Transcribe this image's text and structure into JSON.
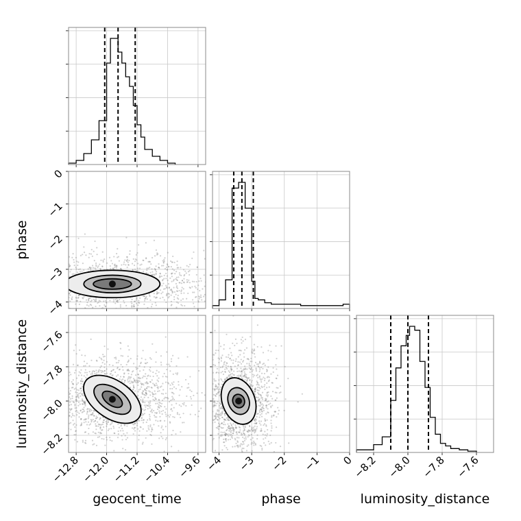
{
  "chart_data": {
    "type": "corner",
    "parameters": [
      "geocent_time",
      "phase",
      "luminosity_distance"
    ],
    "axis_labels": [
      "geocent_time",
      "phase",
      "luminosity_distance"
    ],
    "ranges": [
      [
        -13.0,
        -9.4
      ],
      [
        -4.2,
        0.0
      ],
      [
        -8.3,
        -7.5
      ]
    ],
    "ticks": [
      {
        "values": [
          -12.8,
          -12.0,
          -11.2,
          -10.4,
          -9.6
        ],
        "labels": [
          "−12.8",
          "−12.0",
          "−11.2",
          "−10.4",
          "−9.6"
        ]
      },
      {
        "values": [
          -4,
          -3,
          -2,
          -1,
          0
        ],
        "labels": [
          "−4",
          "−3",
          "−2",
          "−1",
          "0"
        ]
      },
      {
        "values": [
          -8.2,
          -8.0,
          -7.8,
          -7.6
        ],
        "labels": [
          "−8.2",
          "−8.0",
          "−7.8",
          "−7.6"
        ]
      }
    ],
    "grid": true,
    "histograms": [
      {
        "parameter": "geocent_time",
        "bin_edges": [
          -13.0,
          -12.8,
          -12.6,
          -12.4,
          -12.2,
          -12.0,
          -11.9,
          -11.8,
          -11.7,
          -11.6,
          -11.5,
          -11.4,
          -11.3,
          -11.2,
          -11.1,
          -11.0,
          -10.8,
          -10.6,
          -10.4,
          -10.2
        ],
        "counts": [
          0.01,
          0.03,
          0.08,
          0.18,
          0.32,
          0.74,
          0.92,
          0.92,
          0.82,
          0.74,
          0.64,
          0.57,
          0.43,
          0.29,
          0.2,
          0.11,
          0.06,
          0.03,
          0.01
        ],
        "quantiles": [
          -12.05,
          -11.7,
          -11.25
        ]
      },
      {
        "parameter": "phase",
        "bin_edges": [
          -4.2,
          -4.0,
          -3.8,
          -3.6,
          -3.5,
          -3.4,
          -3.3,
          -3.2,
          -3.1,
          -3.0,
          -2.9,
          -2.8,
          -2.6,
          -2.4,
          -2.0,
          -1.5,
          -1.0,
          -0.5,
          -0.2,
          0.0
        ],
        "counts": [
          0.02,
          0.06,
          0.2,
          0.84,
          0.84,
          0.88,
          0.88,
          0.7,
          0.7,
          0.19,
          0.07,
          0.06,
          0.04,
          0.03,
          0.03,
          0.02,
          0.02,
          0.02,
          0.03
        ],
        "quantiles": [
          -3.55,
          -3.3,
          -2.95
        ]
      },
      {
        "parameter": "luminosity_distance",
        "bin_edges": [
          -8.3,
          -8.2,
          -8.15,
          -8.1,
          -8.07,
          -8.04,
          -8.01,
          -7.99,
          -7.96,
          -7.93,
          -7.9,
          -7.87,
          -7.84,
          -7.81,
          -7.78,
          -7.75,
          -7.7,
          -7.65,
          -7.6
        ],
        "counts": [
          0.02,
          0.06,
          0.12,
          0.4,
          0.65,
          0.82,
          0.9,
          0.97,
          0.94,
          0.7,
          0.5,
          0.27,
          0.14,
          0.07,
          0.05,
          0.03,
          0.02,
          0.01
        ],
        "quantiles": [
          -8.1,
          -8.0,
          -7.88
        ]
      }
    ],
    "contours_2d": [
      {
        "x": "geocent_time",
        "y": "phase",
        "center": [
          -11.85,
          -3.45
        ],
        "levels": [
          [
            0.5,
            0.16
          ],
          [
            0.75,
            0.27
          ],
          [
            1.25,
            0.42
          ]
        ],
        "tilt": 0.0
      },
      {
        "x": "geocent_time",
        "y": "luminosity_distance",
        "center": [
          -11.85,
          -7.99
        ],
        "levels": [
          [
            0.3,
            0.035
          ],
          [
            0.55,
            0.065
          ],
          [
            0.85,
            0.11
          ]
        ],
        "tilt": -0.6
      },
      {
        "x": "phase",
        "y": "luminosity_distance",
        "center": [
          -3.4,
          -8.0
        ],
        "levels": [
          [
            0.18,
            0.04
          ],
          [
            0.32,
            0.08
          ],
          [
            0.5,
            0.14
          ]
        ],
        "tilt": 0.35
      }
    ]
  }
}
